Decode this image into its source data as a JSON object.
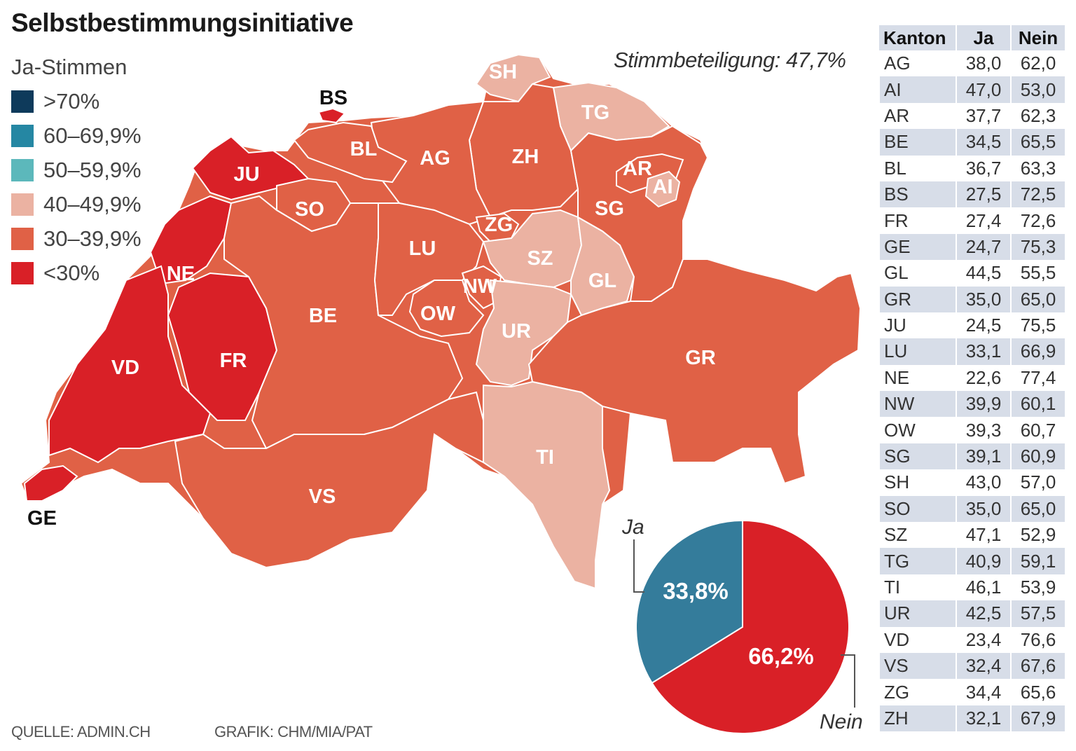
{
  "title": "Selbstbestimmungsinitiative",
  "legend": {
    "title": "Ja-Stimmen",
    "items": [
      {
        "label": ">70%",
        "color": "#0e3a5b"
      },
      {
        "label": "60–69,9%",
        "color": "#2587a3"
      },
      {
        "label": "50–59,9%",
        "color": "#5cb8bb"
      },
      {
        "label": "40–49,9%",
        "color": "#ebb2a2"
      },
      {
        "label": "30–39,9%",
        "color": "#e06146"
      },
      {
        "label": "<30%",
        "color": "#d92027"
      }
    ]
  },
  "turnout": "Stimmbeteiligung: 47,7%",
  "map_labels": {
    "SH": "SH",
    "BS": "BS",
    "TG": "TG",
    "JU": "JU",
    "BL": "BL",
    "AG": "AG",
    "ZH": "ZH",
    "AR": "AR",
    "AI": "AI",
    "SO": "SO",
    "SG": "SG",
    "ZG": "ZG",
    "LU": "LU",
    "SZ": "SZ",
    "NE": "NE",
    "NW": "NW",
    "GL": "GL",
    "BE": "BE",
    "OW": "OW",
    "UR": "UR",
    "FR": "FR",
    "VD": "VD",
    "GR": "GR",
    "TI": "TI",
    "VS": "VS",
    "GE": "GE"
  },
  "pie": {
    "ja_word": "Ja",
    "nein_word": "Nein",
    "ja_label": "33,8%",
    "nein_label": "66,2%",
    "ja_value": 33.8,
    "nein_value": 66.2,
    "ja_color": "#347c9b",
    "nein_color": "#d92027"
  },
  "table": {
    "headers": [
      "Kanton",
      "Ja",
      "Nein"
    ],
    "rows": [
      [
        "AG",
        "38,0",
        "62,0"
      ],
      [
        "AI",
        "47,0",
        "53,0"
      ],
      [
        "AR",
        "37,7",
        "62,3"
      ],
      [
        "BE",
        "34,5",
        "65,5"
      ],
      [
        "BL",
        "36,7",
        "63,3"
      ],
      [
        "BS",
        "27,5",
        "72,5"
      ],
      [
        "FR",
        "27,4",
        "72,6"
      ],
      [
        "GE",
        "24,7",
        "75,3"
      ],
      [
        "GL",
        "44,5",
        "55,5"
      ],
      [
        "GR",
        "35,0",
        "65,0"
      ],
      [
        "JU",
        "24,5",
        "75,5"
      ],
      [
        "LU",
        "33,1",
        "66,9"
      ],
      [
        "NE",
        "22,6",
        "77,4"
      ],
      [
        "NW",
        "39,9",
        "60,1"
      ],
      [
        "OW",
        "39,3",
        "60,7"
      ],
      [
        "SG",
        "39,1",
        "60,9"
      ],
      [
        "SH",
        "43,0",
        "57,0"
      ],
      [
        "SO",
        "35,0",
        "65,0"
      ],
      [
        "SZ",
        "47,1",
        "52,9"
      ],
      [
        "TG",
        "40,9",
        "59,1"
      ],
      [
        "TI",
        "46,1",
        "53,9"
      ],
      [
        "UR",
        "42,5",
        "57,5"
      ],
      [
        "VD",
        "23,4",
        "76,6"
      ],
      [
        "VS",
        "32,4",
        "67,6"
      ],
      [
        "ZG",
        "34,4",
        "65,6"
      ],
      [
        "ZH",
        "32,1",
        "67,9"
      ]
    ]
  },
  "footer": {
    "source": "QUELLE: ADMIN.CH",
    "graphic": "GRAFIK: CHM/MIA/PAT"
  }
}
